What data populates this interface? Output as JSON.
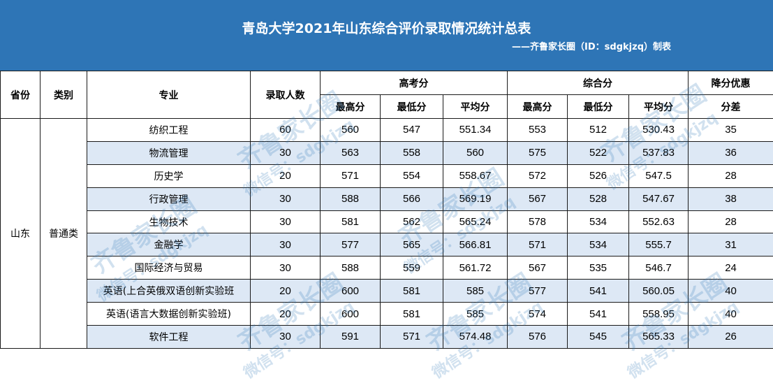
{
  "title": "青岛大学2021年山东综合评价录取情况统计总表",
  "subtitle": "——齐鲁家长圈（ID：sdgkjzq）制表",
  "headers": {
    "province": "省份",
    "category": "类别",
    "major": "专业",
    "admitted": "录取人数",
    "gaokao": "高考分",
    "composite": "综合分",
    "bonus": "降分优惠",
    "max": "最高分",
    "min": "最低分",
    "avg": "平均分",
    "diff": "分差"
  },
  "province_value": "山东",
  "category_value": "普通类",
  "rows": [
    {
      "major": "纺织工程",
      "admitted": "60",
      "g_max": "560",
      "g_min": "547",
      "g_avg": "551.34",
      "c_max": "553",
      "c_min": "512",
      "c_avg": "530.43",
      "diff": "35"
    },
    {
      "major": "物流管理",
      "admitted": "30",
      "g_max": "563",
      "g_min": "558",
      "g_avg": "560",
      "c_max": "575",
      "c_min": "522",
      "c_avg": "537.83",
      "diff": "36"
    },
    {
      "major": "历史学",
      "admitted": "20",
      "g_max": "571",
      "g_min": "554",
      "g_avg": "558.67",
      "c_max": "572",
      "c_min": "526",
      "c_avg": "547.5",
      "diff": "28"
    },
    {
      "major": "行政管理",
      "admitted": "30",
      "g_max": "588",
      "g_min": "566",
      "g_avg": "569.19",
      "c_max": "567",
      "c_min": "528",
      "c_avg": "547.67",
      "diff": "38"
    },
    {
      "major": "生物技术",
      "admitted": "30",
      "g_max": "581",
      "g_min": "562",
      "g_avg": "565.24",
      "c_max": "578",
      "c_min": "534",
      "c_avg": "552.63",
      "diff": "28"
    },
    {
      "major": "金融学",
      "admitted": "30",
      "g_max": "577",
      "g_min": "565",
      "g_avg": "566.81",
      "c_max": "571",
      "c_min": "534",
      "c_avg": "555.7",
      "diff": "31"
    },
    {
      "major": "国际经济与贸易",
      "admitted": "30",
      "g_max": "588",
      "g_min": "559",
      "g_avg": "561.72",
      "c_max": "567",
      "c_min": "535",
      "c_avg": "546.7",
      "diff": "24"
    },
    {
      "major": "英语(上合英俄双语创新实验班",
      "admitted": "20",
      "g_max": "600",
      "g_min": "581",
      "g_avg": "585",
      "c_max": "577",
      "c_min": "541",
      "c_avg": "560.05",
      "diff": "40"
    },
    {
      "major": "英语(语言大数据创新实验班)",
      "admitted": "20",
      "g_max": "600",
      "g_min": "581",
      "g_avg": "585",
      "c_max": "574",
      "c_min": "541",
      "c_avg": "558.95",
      "diff": "40"
    },
    {
      "major": "软件工程",
      "admitted": "30",
      "g_max": "591",
      "g_min": "571",
      "g_avg": "574.48",
      "c_max": "576",
      "c_min": "545",
      "c_avg": "565.33",
      "diff": "26"
    }
  ],
  "watermark": {
    "line1": "齐鲁家长圈",
    "line2": "微信号：sdgkjzq"
  }
}
